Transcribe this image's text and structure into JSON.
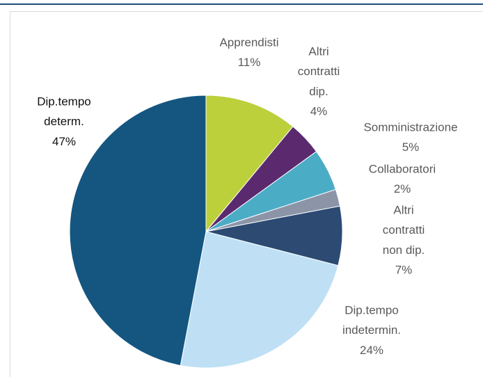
{
  "chart_data": {
    "type": "pie",
    "categories": [
      [
        "Apprendisti"
      ],
      [
        "Altri",
        "contratti",
        "dip."
      ],
      [
        "Somministrazione"
      ],
      [
        "Collaboratori"
      ],
      [
        "Altri",
        "contratti",
        "non dip."
      ],
      [
        "Dip.tempo",
        "indetermin."
      ],
      [
        "Dip.tempo",
        "determ."
      ]
    ],
    "values": [
      11,
      4,
      5,
      2,
      7,
      24,
      47
    ],
    "value_labels": [
      "11%",
      "4%",
      "5%",
      "2%",
      "7%",
      "24%",
      "47%"
    ],
    "colors": [
      "#bcd03c",
      "#5b2a6e",
      "#4bacc6",
      "#8c95a8",
      "#2c4a72",
      "#bfe0f4",
      "#145680"
    ]
  }
}
